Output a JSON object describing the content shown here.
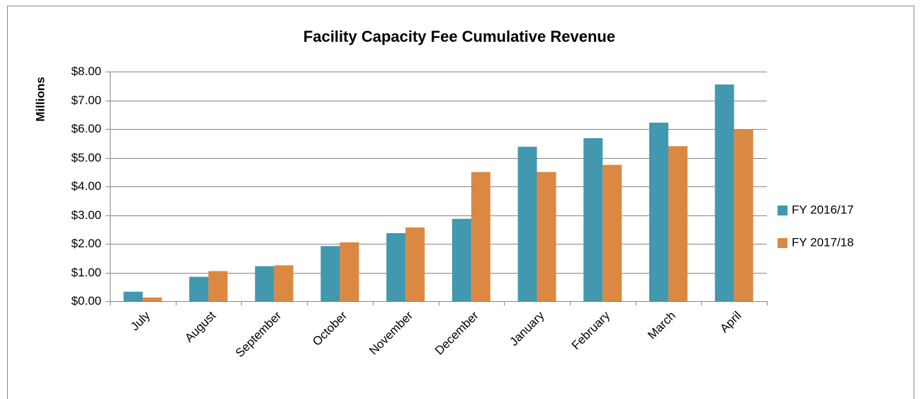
{
  "chart_data": {
    "type": "bar",
    "title": "Facility Capacity Fee Cumulative Revenue",
    "y_label": "Millions",
    "categories": [
      "July",
      "August",
      "September",
      "October",
      "November",
      "December",
      "January",
      "February",
      "March",
      "April"
    ],
    "series": [
      {
        "name": "FY 2016/17",
        "color": "#4198af",
        "values": [
          0.33,
          0.85,
          1.22,
          1.92,
          2.37,
          2.87,
          5.38,
          5.68,
          6.22,
          7.55
        ]
      },
      {
        "name": "FY 2017/18",
        "color": "#db8843",
        "values": [
          0.13,
          1.05,
          1.25,
          2.05,
          2.57,
          4.5,
          4.5,
          4.75,
          5.4,
          6.0
        ]
      }
    ],
    "ylim": [
      0,
      8
    ],
    "yticks": [
      {
        "value": 0,
        "label": "$0.00"
      },
      {
        "value": 1,
        "label": "$1.00"
      },
      {
        "value": 2,
        "label": "$2.00"
      },
      {
        "value": 3,
        "label": "$3.00"
      },
      {
        "value": 4,
        "label": "$4.00"
      },
      {
        "value": 5,
        "label": "$5.00"
      },
      {
        "value": 6,
        "label": "$6.00"
      },
      {
        "value": 7,
        "label": "$7.00"
      },
      {
        "value": 8,
        "label": "$8.00"
      }
    ],
    "grid": true,
    "legend": "right"
  }
}
